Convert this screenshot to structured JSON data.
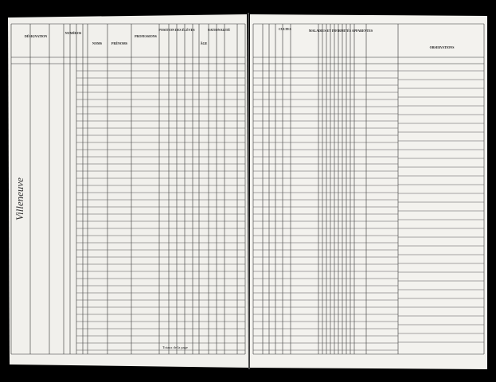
{
  "left_page": {
    "headers": [
      "DÉSIGNATION",
      "NUMÉROS",
      "NOMS",
      "PRÉNOMS",
      "PROFESSIONS",
      "POSITION DES ÉLÈVES",
      "NATIONALITÉ",
      "ÂGE"
    ],
    "footer": "Totaux de la page"
  },
  "right_page": {
    "headers": [
      "CULTES",
      "MALADIES ET INFIRMITÉS APPARENTES",
      "OBSERVATIONS"
    ]
  },
  "margin_note": "Villeneuve"
}
